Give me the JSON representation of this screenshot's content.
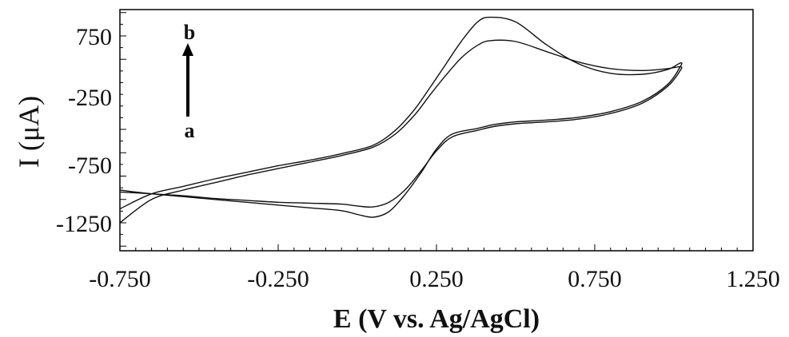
{
  "chart_data": {
    "type": "line",
    "title": "",
    "xlabel": "E (V vs. Ag/AgCl)",
    "ylabel": "I (μA)",
    "xlim": [
      -0.75,
      1.25
    ],
    "ylim": [
      -1500,
      1000
    ],
    "x_ticks": [
      -0.75,
      -0.25,
      0.25,
      0.75,
      1.25
    ],
    "x_tick_labels": [
      "-0.750",
      "-0.250",
      "0.250",
      "0.750",
      "1.250"
    ],
    "y_ticks": [
      750,
      -250,
      -750,
      -1250
    ],
    "y_tick_labels": [
      "750",
      "-250",
      "-750",
      "-1250"
    ],
    "grid": false,
    "annotations": [
      {
        "text": "b"
      },
      {
        "text": "a"
      }
    ],
    "series": [
      {
        "x": [
          -0.75,
          -0.65,
          -0.55,
          -0.45,
          -0.35,
          -0.25,
          -0.15,
          -0.05,
          0.05,
          0.12,
          0.18,
          0.23,
          0.28,
          0.33,
          0.38,
          0.42,
          0.5,
          0.6,
          0.7,
          0.8,
          0.9,
          0.98,
          1.02,
          1.02,
          0.98,
          0.9,
          0.8,
          0.7,
          0.6,
          0.5,
          0.43,
          0.38,
          0.3,
          0.25,
          0.2,
          0.15,
          0.1,
          0.05,
          0.0,
          -0.05,
          -0.15,
          -0.25,
          -0.35,
          -0.45,
          -0.55,
          -0.65,
          -0.75
        ],
        "y": [
          -1100,
          -940,
          -860,
          -780,
          -710,
          -640,
          -580,
          -510,
          -420,
          -260,
          -40,
          200,
          450,
          700,
          900,
          950,
          900,
          650,
          450,
          350,
          340,
          390,
          460,
          420,
          230,
          50,
          -60,
          -120,
          -150,
          -170,
          -200,
          -240,
          -300,
          -460,
          -720,
          -950,
          -1130,
          -1190,
          -1160,
          -1120,
          -1090,
          -1060,
          -1030,
          -1000,
          -970,
          -940,
          -900
        ]
      },
      {
        "x": [
          -0.75,
          -0.65,
          -0.55,
          -0.45,
          -0.35,
          -0.25,
          -0.15,
          -0.05,
          0.05,
          0.12,
          0.18,
          0.23,
          0.28,
          0.33,
          0.38,
          0.42,
          0.5,
          0.6,
          0.7,
          0.8,
          0.9,
          0.98,
          1.02,
          1.02,
          0.98,
          0.9,
          0.8,
          0.7,
          0.6,
          0.5,
          0.43,
          0.38,
          0.3,
          0.25,
          0.2,
          0.15,
          0.1,
          0.05,
          0.0,
          -0.05,
          -0.15,
          -0.25,
          -0.35,
          -0.45,
          -0.55,
          -0.65,
          -0.75
        ],
        "y": [
          -1250,
          -1000,
          -900,
          -820,
          -740,
          -670,
          -600,
          -530,
          -440,
          -300,
          -100,
          120,
          330,
          520,
          650,
          700,
          690,
          580,
          470,
          400,
          380,
          400,
          420,
          380,
          210,
          30,
          -80,
          -140,
          -170,
          -190,
          -220,
          -260,
          -330,
          -480,
          -700,
          -900,
          -1030,
          -1080,
          -1070,
          -1050,
          -1040,
          -1030,
          -1010,
          -990,
          -960,
          -940,
          -920
        ]
      }
    ]
  }
}
